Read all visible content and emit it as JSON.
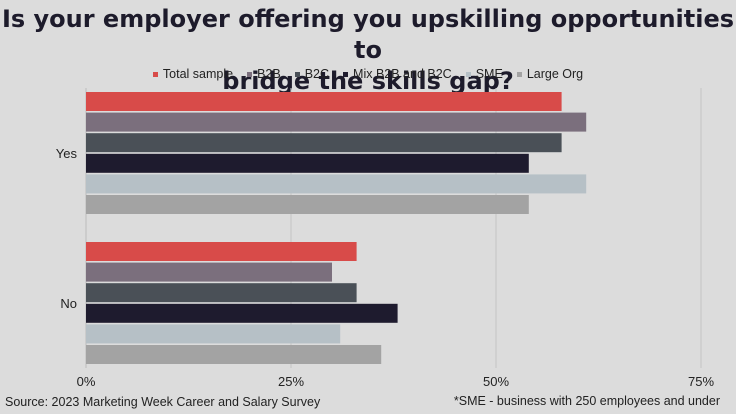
{
  "chart_data": {
    "type": "bar",
    "orientation": "horizontal",
    "title_lines": [
      "Is your employer offering you upskilling opportunities to",
      "bridge the skills gap?"
    ],
    "categories": [
      "Yes",
      "No"
    ],
    "series": [
      {
        "name": "Total sample",
        "color": "#d84b49",
        "values": [
          58,
          33
        ]
      },
      {
        "name": "B2B",
        "color": "#7b6f7d",
        "values": [
          61,
          30
        ]
      },
      {
        "name": "B2C",
        "color": "#4a5057",
        "values": [
          58,
          33
        ]
      },
      {
        "name": "Mix B2B and B2C",
        "color": "#1e1b2e",
        "values": [
          54,
          38
        ]
      },
      {
        "name": "SME",
        "color": "#b6c0c6",
        "values": [
          61,
          31
        ]
      },
      {
        "name": "Large Org",
        "color": "#a3a3a3",
        "values": [
          54,
          36
        ]
      }
    ],
    "xlim": [
      0,
      75
    ],
    "x_ticks": [
      "0%",
      "25%",
      "50%",
      "75%"
    ],
    "x_tick_values": [
      0,
      25,
      50,
      75
    ],
    "grid": true,
    "legend_position": "top"
  },
  "footer": {
    "source": "Source: 2023 Marketing Week Career and Salary Survey",
    "footnote": "*SME - business with 250 employees and under"
  }
}
